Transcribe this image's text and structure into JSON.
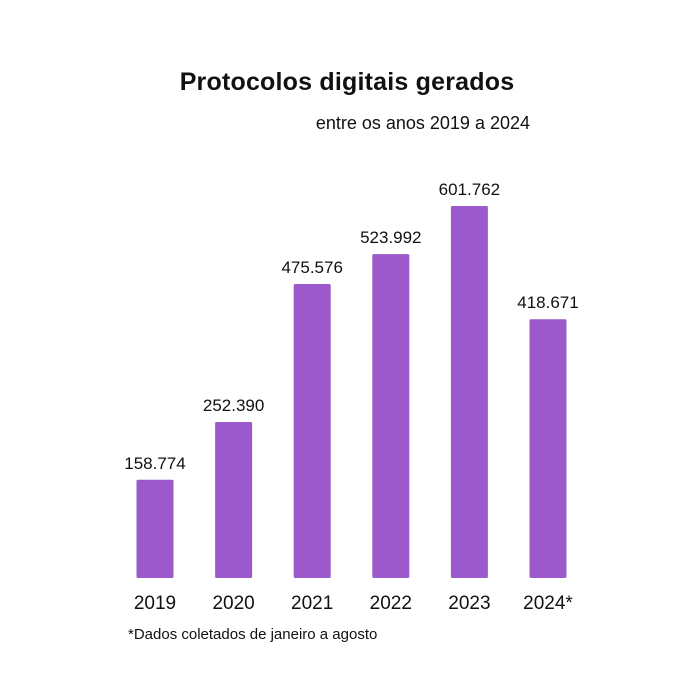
{
  "chart_data": {
    "type": "bar",
    "title": "Protocolos digitais gerados",
    "subtitle": "entre os anos 2019 a 2024",
    "categories": [
      "2019",
      "2020",
      "2021",
      "2022",
      "2023",
      "2024*"
    ],
    "values": [
      158774,
      252390,
      475576,
      523992,
      601762,
      418671
    ],
    "data_labels": [
      "158.774",
      "252.390",
      "475.576",
      "523.992",
      "601.762",
      "418.671"
    ],
    "xlabel": "",
    "ylabel": "",
    "ylim": [
      0,
      601762
    ],
    "grid": false,
    "legend": "none",
    "bar_color": "#9b59cc",
    "footnote": "*Dados coletados de janeiro a agosto"
  }
}
